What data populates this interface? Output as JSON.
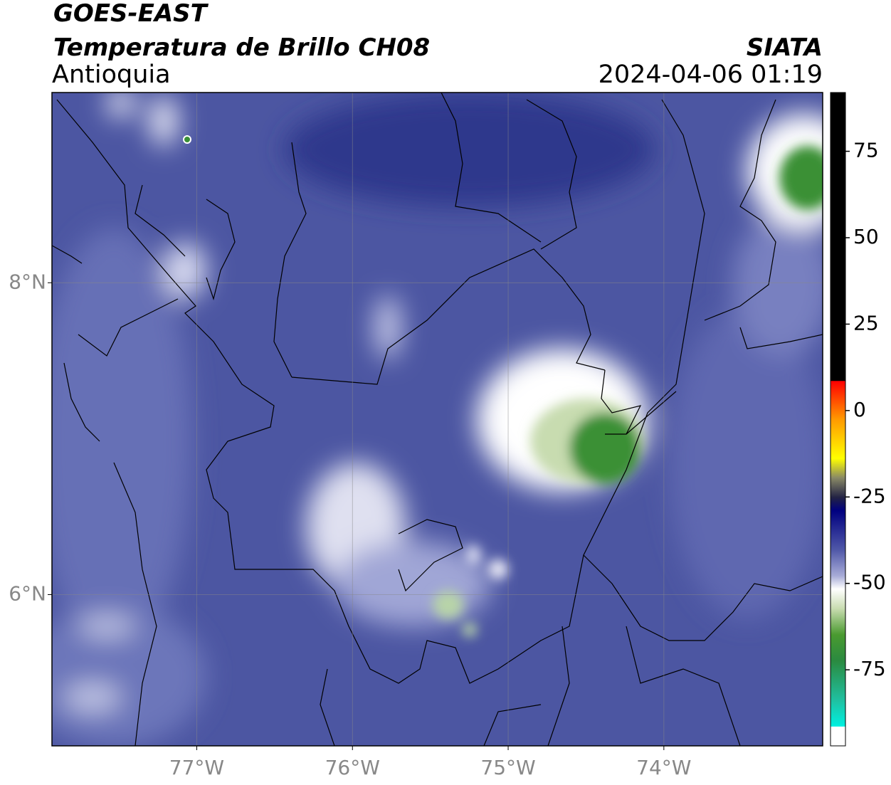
{
  "header": {
    "line1": "GOES-EAST",
    "line2": "Temperatura de Brillo CH08",
    "line3": "Antioquia",
    "source": "SIATA",
    "datetime": "2024-04-06 01:19"
  },
  "map": {
    "lonlim": [
      -77.93,
      -72.98
    ],
    "latlim": [
      5.03,
      9.22
    ],
    "lon_ticks": [
      {
        "value": -77,
        "label": "77°W"
      },
      {
        "value": -76,
        "label": "76°W"
      },
      {
        "value": -75,
        "label": "75°W"
      },
      {
        "value": -74,
        "label": "74°W"
      }
    ],
    "lat_ticks": [
      {
        "value": 8,
        "label": "8°N"
      },
      {
        "value": 6,
        "label": "6°N"
      }
    ]
  },
  "colorbar": {
    "clim": [
      -97,
      92
    ],
    "ticks": [
      75,
      50,
      25,
      0,
      -25,
      -50,
      -75
    ]
  }
}
